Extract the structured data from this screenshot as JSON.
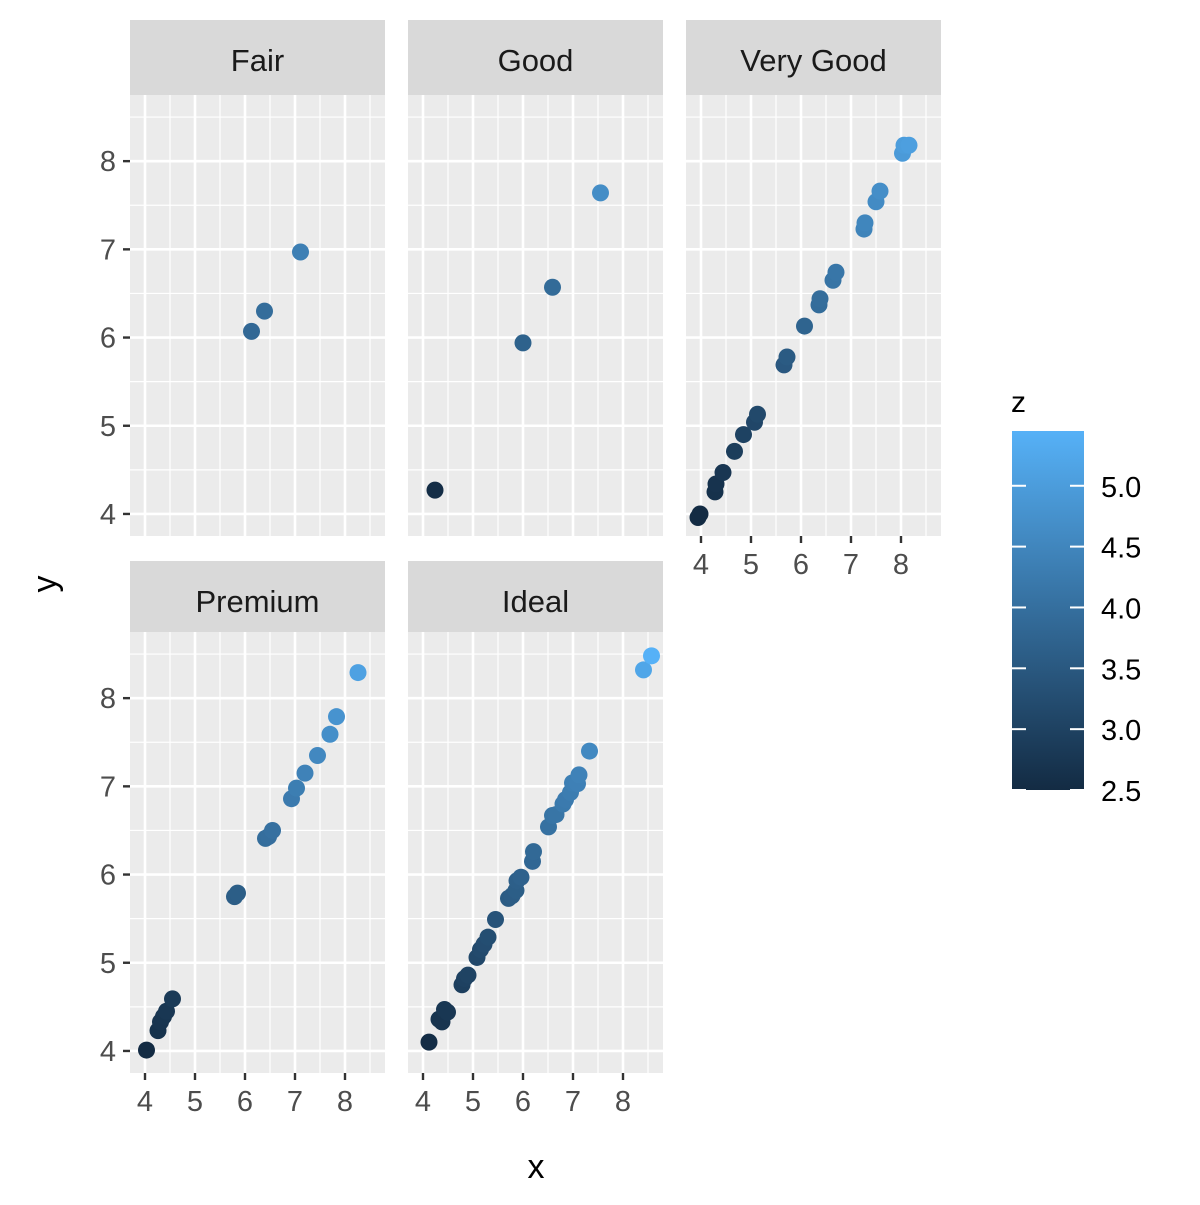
{
  "chart_data": {
    "type": "scatter",
    "facet_by": "cut",
    "xlabel": "x",
    "ylabel": "y",
    "xlim": [
      3.7,
      8.8
    ],
    "ylim": [
      3.75,
      8.75
    ],
    "x_ticks": [
      4,
      5,
      6,
      7,
      8
    ],
    "y_ticks": [
      4,
      5,
      6,
      7,
      8
    ],
    "grid": true,
    "legend": {
      "title": "z",
      "position": "right",
      "ticks": [
        "2.5",
        "3.0",
        "3.5",
        "4.0",
        "4.5",
        "5.0"
      ],
      "range": [
        2.5,
        5.45
      ],
      "color_low": "#132B43",
      "color_high": "#56B1F7"
    },
    "panels": [
      {
        "label": "Fair",
        "points": [
          {
            "x": 6.13,
            "y": 6.07,
            "z": 3.85
          },
          {
            "x": 6.39,
            "y": 6.3,
            "z": 3.95
          },
          {
            "x": 7.11,
            "y": 6.97,
            "z": 4.35
          }
        ]
      },
      {
        "label": "Good",
        "points": [
          {
            "x": 4.24,
            "y": 4.27,
            "z": 2.55
          },
          {
            "x": 6.0,
            "y": 5.94,
            "z": 3.7
          },
          {
            "x": 6.59,
            "y": 6.57,
            "z": 3.9
          },
          {
            "x": 7.55,
            "y": 7.64,
            "z": 4.65
          }
        ]
      },
      {
        "label": "Very Good",
        "points": [
          {
            "x": 3.94,
            "y": 3.96,
            "z": 2.45
          },
          {
            "x": 3.98,
            "y": 4.0,
            "z": 2.48
          },
          {
            "x": 4.28,
            "y": 4.25,
            "z": 2.65
          },
          {
            "x": 4.3,
            "y": 4.34,
            "z": 2.68
          },
          {
            "x": 4.44,
            "y": 4.47,
            "z": 2.75
          },
          {
            "x": 4.67,
            "y": 4.71,
            "z": 2.9
          },
          {
            "x": 4.85,
            "y": 4.9,
            "z": 3.0
          },
          {
            "x": 5.07,
            "y": 5.04,
            "z": 3.1
          },
          {
            "x": 5.13,
            "y": 5.13,
            "z": 3.15
          },
          {
            "x": 5.66,
            "y": 5.69,
            "z": 3.5
          },
          {
            "x": 5.72,
            "y": 5.78,
            "z": 3.55
          },
          {
            "x": 6.07,
            "y": 6.13,
            "z": 3.75
          },
          {
            "x": 6.36,
            "y": 6.37,
            "z": 3.92
          },
          {
            "x": 6.38,
            "y": 6.44,
            "z": 3.95
          },
          {
            "x": 6.64,
            "y": 6.65,
            "z": 4.1
          },
          {
            "x": 6.7,
            "y": 6.74,
            "z": 4.15
          },
          {
            "x": 7.26,
            "y": 7.23,
            "z": 4.45
          },
          {
            "x": 7.28,
            "y": 7.3,
            "z": 4.5
          },
          {
            "x": 7.5,
            "y": 7.54,
            "z": 4.62
          },
          {
            "x": 7.58,
            "y": 7.66,
            "z": 4.68
          },
          {
            "x": 8.03,
            "y": 8.09,
            "z": 4.95
          },
          {
            "x": 8.06,
            "y": 8.18,
            "z": 5.0
          },
          {
            "x": 8.16,
            "y": 8.18,
            "z": 5.05
          }
        ]
      },
      {
        "label": "Premium",
        "points": [
          {
            "x": 4.03,
            "y": 4.01,
            "z": 2.5
          },
          {
            "x": 4.26,
            "y": 4.23,
            "z": 2.65
          },
          {
            "x": 4.31,
            "y": 4.33,
            "z": 2.7
          },
          {
            "x": 4.37,
            "y": 4.39,
            "z": 2.72
          },
          {
            "x": 4.43,
            "y": 4.45,
            "z": 2.76
          },
          {
            "x": 4.55,
            "y": 4.59,
            "z": 2.83
          },
          {
            "x": 5.79,
            "y": 5.75,
            "z": 3.6
          },
          {
            "x": 5.85,
            "y": 5.79,
            "z": 3.62
          },
          {
            "x": 6.41,
            "y": 6.41,
            "z": 3.95
          },
          {
            "x": 6.47,
            "y": 6.43,
            "z": 3.98
          },
          {
            "x": 6.55,
            "y": 6.5,
            "z": 4.02
          },
          {
            "x": 6.93,
            "y": 6.86,
            "z": 4.25
          },
          {
            "x": 7.03,
            "y": 6.98,
            "z": 4.32
          },
          {
            "x": 7.2,
            "y": 7.15,
            "z": 4.42
          },
          {
            "x": 7.45,
            "y": 7.35,
            "z": 4.55
          },
          {
            "x": 7.7,
            "y": 7.59,
            "z": 4.7
          },
          {
            "x": 7.83,
            "y": 7.79,
            "z": 4.8
          },
          {
            "x": 8.26,
            "y": 8.29,
            "z": 5.1
          }
        ]
      },
      {
        "label": "Ideal",
        "points": [
          {
            "x": 4.12,
            "y": 4.1,
            "z": 2.55
          },
          {
            "x": 4.32,
            "y": 4.36,
            "z": 2.69
          },
          {
            "x": 4.38,
            "y": 4.33,
            "z": 2.7
          },
          {
            "x": 4.43,
            "y": 4.47,
            "z": 2.76
          },
          {
            "x": 4.49,
            "y": 4.44,
            "z": 2.77
          },
          {
            "x": 4.78,
            "y": 4.75,
            "z": 2.95
          },
          {
            "x": 4.83,
            "y": 4.82,
            "z": 2.99
          },
          {
            "x": 4.9,
            "y": 4.86,
            "z": 3.02
          },
          {
            "x": 5.08,
            "y": 5.06,
            "z": 3.14
          },
          {
            "x": 5.15,
            "y": 5.15,
            "z": 3.19
          },
          {
            "x": 5.22,
            "y": 5.21,
            "z": 3.23
          },
          {
            "x": 5.3,
            "y": 5.29,
            "z": 3.27
          },
          {
            "x": 5.45,
            "y": 5.49,
            "z": 3.38
          },
          {
            "x": 5.71,
            "y": 5.73,
            "z": 3.55
          },
          {
            "x": 5.78,
            "y": 5.76,
            "z": 3.58
          },
          {
            "x": 5.86,
            "y": 5.82,
            "z": 3.62
          },
          {
            "x": 5.88,
            "y": 5.93,
            "z": 3.65
          },
          {
            "x": 5.96,
            "y": 5.97,
            "z": 3.69
          },
          {
            "x": 6.19,
            "y": 6.15,
            "z": 3.82
          },
          {
            "x": 6.21,
            "y": 6.26,
            "z": 3.86
          },
          {
            "x": 6.51,
            "y": 6.54,
            "z": 4.04
          },
          {
            "x": 6.59,
            "y": 6.67,
            "z": 4.1
          },
          {
            "x": 6.66,
            "y": 6.68,
            "z": 4.13
          },
          {
            "x": 6.8,
            "y": 6.8,
            "z": 4.22
          },
          {
            "x": 6.85,
            "y": 6.85,
            "z": 4.25
          },
          {
            "x": 6.95,
            "y": 6.93,
            "z": 4.3
          },
          {
            "x": 6.99,
            "y": 7.04,
            "z": 4.35
          },
          {
            "x": 7.09,
            "y": 7.03,
            "z": 4.38
          },
          {
            "x": 7.12,
            "y": 7.13,
            "z": 4.42
          },
          {
            "x": 7.33,
            "y": 7.4,
            "z": 4.56
          },
          {
            "x": 8.41,
            "y": 8.32,
            "z": 5.2
          },
          {
            "x": 8.57,
            "y": 8.48,
            "z": 5.45
          }
        ]
      }
    ]
  }
}
